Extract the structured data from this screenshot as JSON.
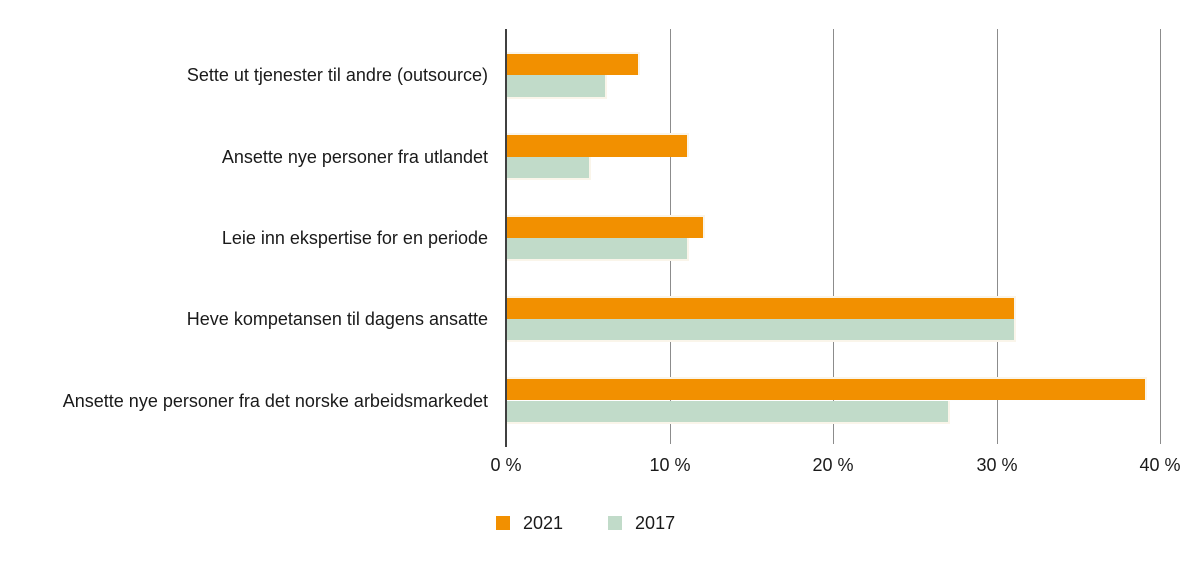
{
  "chart_data": {
    "type": "bar",
    "orientation": "horizontal",
    "title": "",
    "categories": [
      "Sette ut tjenester til andre (outsource)",
      "Ansette nye personer fra utlandet",
      "Leie inn ekspertise for en periode",
      "Heve kompetansen til dagens ansatte",
      "Ansette nye personer fra det norske arbeidsmarkedet"
    ],
    "series": [
      {
        "name": "2021",
        "color": "#F29000",
        "values": [
          8,
          11,
          12,
          31,
          39
        ]
      },
      {
        "name": "2017",
        "color": "#C1DBC9",
        "values": [
          6,
          5,
          11,
          31,
          27
        ]
      }
    ],
    "x_axis": {
      "min": 0,
      "max": 40,
      "unit": "%",
      "ticks": [
        0,
        10,
        20,
        30,
        40
      ],
      "tick_labels": [
        "0 %",
        "10 %",
        "20 %",
        "30 %",
        "40 %"
      ]
    },
    "grid": "vertical-gridlines-on",
    "legend_position": "bottom-left",
    "colors": {
      "gridline": "#8C8C8C",
      "axis": "#404040",
      "text": "#1A1A1A",
      "background": "#FFFFFF",
      "bar_halo": "#FAF5EA"
    }
  }
}
